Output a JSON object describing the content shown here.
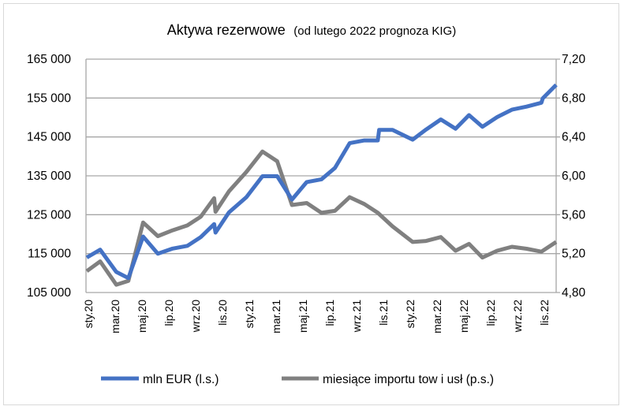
{
  "chart_data": {
    "type": "line",
    "title": "Aktywa rezerwowe",
    "subtitle": "(od lutego 2022 prognoza KIG)",
    "x_unit": "months since sty.20",
    "x_tick_labels": [
      "sty.20",
      "mar.20",
      "maj.20",
      "lip.20",
      "wrz.20",
      "lis.20",
      "sty.21",
      "mar.21",
      "maj.21",
      "lip.21",
      "wrz.21",
      "lis.21",
      "sty.22",
      "mar.22",
      "maj.22",
      "lip.22",
      "wrz.22",
      "lis.22"
    ],
    "y_left": {
      "label": "mln EUR",
      "lim": [
        105000,
        165000
      ],
      "ticks": [
        "105 000",
        "115 000",
        "125 000",
        "135 000",
        "145 000",
        "155 000",
        "165 000"
      ]
    },
    "y_right": {
      "label": "miesiące importu",
      "lim": [
        4.8,
        7.2
      ],
      "ticks": [
        "4,80",
        "5,20",
        "5,60",
        "6,00",
        "6,40",
        "6,80",
        "7,20"
      ]
    },
    "grid": true,
    "legend_position": "bottom",
    "series": [
      {
        "name": "mln EUR (l.s.)",
        "axis": "left",
        "color": "#4472c4",
        "x": [
          0,
          1,
          2.2,
          3.1,
          4.2,
          5.3,
          6.4,
          7.5,
          8.5,
          9.5,
          9.6,
          10.6,
          11.9,
          13.1,
          14.2,
          15.3,
          16.4,
          17.5,
          18.5,
          19.6,
          20.7,
          21.7,
          21.8,
          22.8,
          24.3,
          25.3,
          26.4,
          27.5,
          28.5,
          29.5,
          30.6,
          31.7,
          32.8,
          33.9,
          34.0,
          35
        ],
        "y": [
          114000,
          116000,
          110300,
          108700,
          119400,
          115000,
          116300,
          117000,
          119250,
          122600,
          120400,
          125600,
          129500,
          134900,
          134900,
          128900,
          133400,
          134100,
          137000,
          143400,
          144100,
          144100,
          146800,
          146800,
          144300,
          146900,
          149500,
          147100,
          150600,
          147600,
          150100,
          152000,
          152800,
          153800,
          154900,
          158400
        ]
      },
      {
        "name": "miesiące importu tow i usł (p.s.)",
        "axis": "right",
        "color": "#808080",
        "x": [
          0,
          1,
          2.2,
          3.1,
          4.2,
          5.3,
          6.4,
          7.5,
          8.5,
          9.5,
          9.6,
          10.6,
          11.9,
          13.1,
          14.2,
          15.3,
          16.4,
          17.5,
          18.5,
          19.6,
          20.7,
          21.7,
          22.8,
          24.3,
          25.3,
          26.4,
          27.5,
          28.5,
          29.5,
          30.6,
          31.7,
          32.8,
          33.9,
          35
        ],
        "y": [
          5.02,
          5.12,
          4.88,
          4.92,
          5.52,
          5.38,
          5.44,
          5.49,
          5.58,
          5.77,
          5.63,
          5.84,
          6.04,
          6.25,
          6.15,
          5.7,
          5.72,
          5.62,
          5.64,
          5.78,
          5.71,
          5.62,
          5.48,
          5.32,
          5.33,
          5.37,
          5.23,
          5.3,
          5.16,
          5.23,
          5.27,
          5.25,
          5.22,
          5.32
        ]
      }
    ]
  }
}
